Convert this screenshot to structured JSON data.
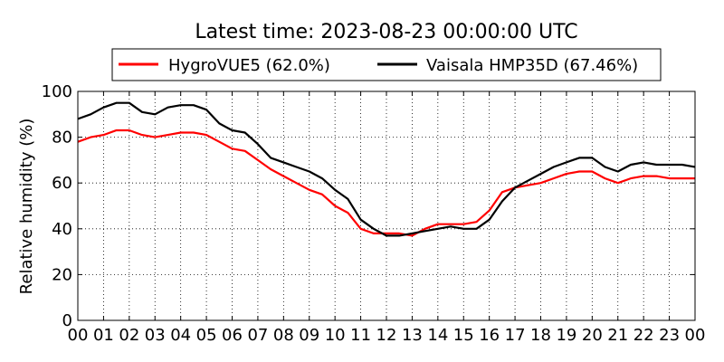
{
  "chart_data": {
    "type": "line",
    "title": "Latest time: 2023-08-23 00:00:00 UTC",
    "xlabel": "",
    "ylabel": "Relative humidity (%)",
    "xlim": [
      0,
      24
    ],
    "ylim": [
      0,
      100
    ],
    "grid": true,
    "legend_position": "top-center",
    "x_tick_labels": [
      "00",
      "01",
      "02",
      "03",
      "04",
      "05",
      "06",
      "07",
      "08",
      "09",
      "10",
      "11",
      "12",
      "13",
      "14",
      "15",
      "16",
      "17",
      "18",
      "19",
      "20",
      "21",
      "22",
      "23",
      "00"
    ],
    "y_ticks": [
      0,
      20,
      40,
      60,
      80,
      100
    ],
    "series": [
      {
        "name": "HygroVUE5 (62.0%)",
        "color": "#ff0000",
        "x": [
          0,
          0.5,
          1,
          1.5,
          2,
          2.5,
          3,
          3.5,
          4,
          4.5,
          5,
          5.5,
          6,
          6.5,
          7,
          7.5,
          8,
          8.5,
          9,
          9.5,
          10,
          10.5,
          11,
          11.5,
          12,
          12.5,
          13,
          13.5,
          14,
          14.5,
          15,
          15.5,
          16,
          16.5,
          17,
          17.5,
          18,
          18.5,
          19,
          19.5,
          20,
          20.5,
          21,
          21.5,
          22,
          22.5,
          23,
          23.5,
          24
        ],
        "values": [
          78,
          80,
          81,
          83,
          83,
          81,
          80,
          81,
          82,
          82,
          81,
          78,
          75,
          74,
          70,
          66,
          63,
          60,
          57,
          55,
          50,
          47,
          40,
          38,
          38,
          38,
          37,
          40,
          42,
          42,
          42,
          43,
          48,
          56,
          58,
          59,
          60,
          62,
          64,
          65,
          65,
          62,
          60,
          62,
          63,
          63,
          62,
          62,
          62
        ]
      },
      {
        "name": "Vaisala HMP35D (67.46%)",
        "color": "#000000",
        "x": [
          0,
          0.5,
          1,
          1.5,
          2,
          2.5,
          3,
          3.5,
          4,
          4.5,
          5,
          5.5,
          6,
          6.5,
          7,
          7.5,
          8,
          8.5,
          9,
          9.5,
          10,
          10.5,
          11,
          11.5,
          12,
          12.5,
          13,
          13.5,
          14,
          14.5,
          15,
          15.5,
          16,
          16.5,
          17,
          17.5,
          18,
          18.5,
          19,
          19.5,
          20,
          20.5,
          21,
          21.5,
          22,
          22.5,
          23,
          23.5,
          24
        ],
        "values": [
          88,
          90,
          93,
          95,
          95,
          91,
          90,
          93,
          94,
          94,
          92,
          86,
          83,
          82,
          77,
          71,
          69,
          67,
          65,
          62,
          57,
          53,
          44,
          40,
          37,
          37,
          38,
          39,
          40,
          41,
          40,
          40,
          44,
          52,
          58,
          61,
          64,
          67,
          69,
          71,
          71,
          67,
          65,
          68,
          69,
          68,
          68,
          68,
          67
        ]
      }
    ]
  }
}
